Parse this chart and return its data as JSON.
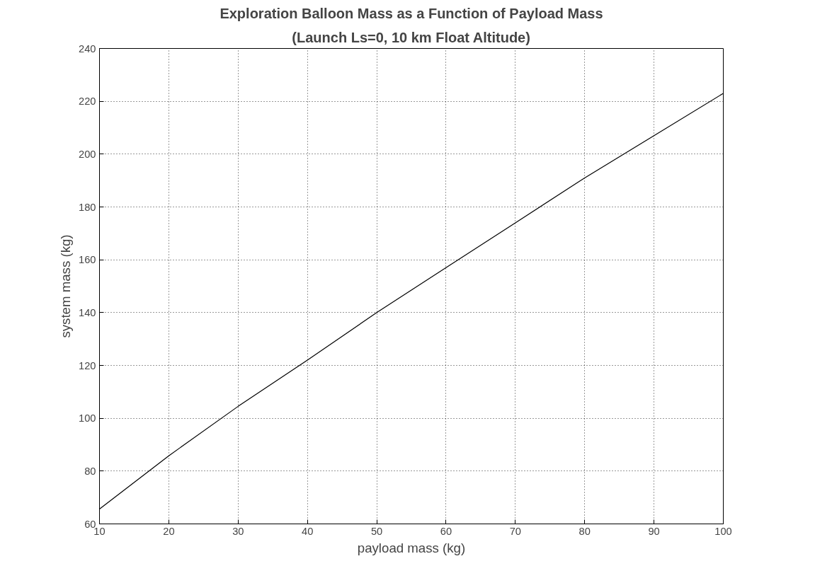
{
  "chart_data": {
    "type": "line",
    "title": "Exploration Balloon Mass as a Function of Payload Mass",
    "subtitle": "(Launch Ls=0, 10 km Float Altitude)",
    "xlabel": "payload mass (kg)",
    "ylabel": "system mass (kg)",
    "x": [
      10,
      20,
      30,
      40,
      50,
      60,
      70,
      80,
      90,
      100
    ],
    "series": [
      {
        "color": "#000000",
        "values": [
          65.6,
          85.8,
          104.5,
          122,
          140,
          157,
          174,
          191,
          207,
          223
        ]
      }
    ],
    "xlim": [
      10,
      100
    ],
    "ylim": [
      60,
      240
    ],
    "xticks": [
      10,
      20,
      30,
      40,
      50,
      60,
      70,
      80,
      90,
      100
    ],
    "yticks": [
      60,
      80,
      100,
      120,
      140,
      160,
      180,
      200,
      220,
      240
    ],
    "grid": true,
    "line_style": "solid"
  }
}
